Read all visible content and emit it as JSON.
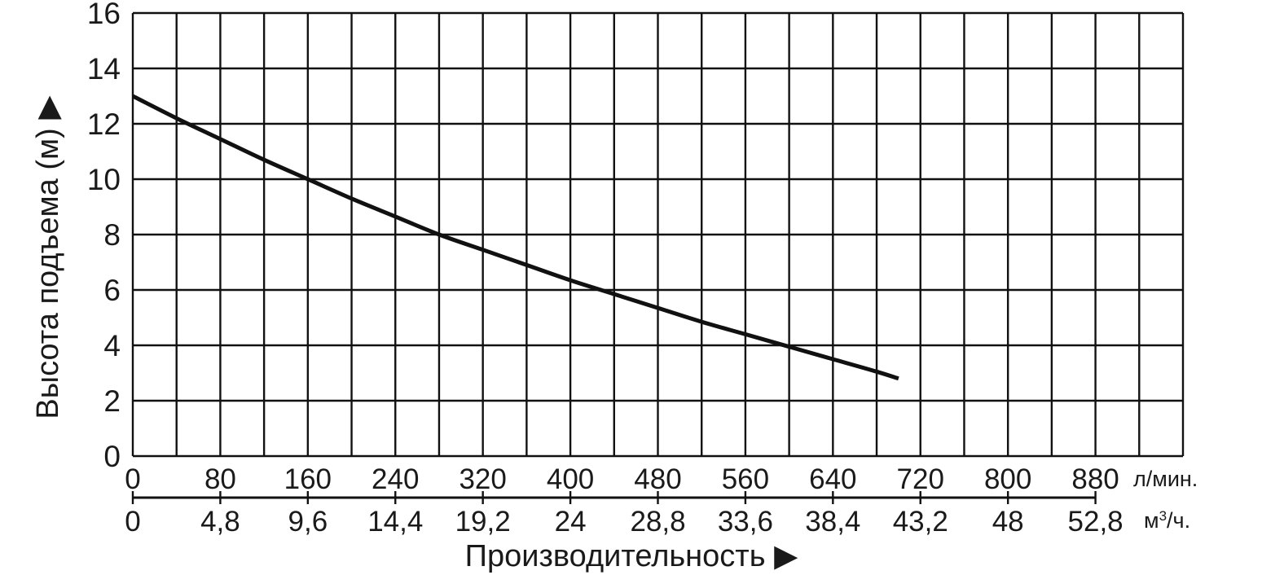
{
  "chart_data": {
    "type": "line",
    "ylabel": "Высота подъема (м)",
    "ylabel_arrow": "▶",
    "xlabel": "Производительность",
    "xlabel_arrow": "▶",
    "ylim": [
      0,
      16
    ],
    "yticks": [
      "0",
      "2",
      "4",
      "6",
      "8",
      "10",
      "12",
      "14",
      "16"
    ],
    "xlim": [
      0,
      960
    ],
    "x_minor_step": 40,
    "grid": true,
    "x_axis_primary": {
      "unit": "л/мин.",
      "ticks": [
        "0",
        "80",
        "160",
        "240",
        "320",
        "400",
        "480",
        "560",
        "640",
        "720",
        "800",
        "880"
      ],
      "tick_values": [
        0,
        80,
        160,
        240,
        320,
        400,
        480,
        560,
        640,
        720,
        800,
        880
      ]
    },
    "x_axis_secondary": {
      "unit_base": "м",
      "unit_sup": "3",
      "unit_tail": "/ч.",
      "ticks": [
        "0",
        "4,8",
        "9,6",
        "14,4",
        "19,2",
        "24",
        "28,8",
        "33,6",
        "38,4",
        "43,2",
        "48",
        "52,8"
      ]
    },
    "series": [
      {
        "x": [
          0,
          40,
          80,
          120,
          160,
          200,
          240,
          280,
          320,
          360,
          400,
          440,
          480,
          520,
          560,
          600,
          640,
          680,
          700
        ],
        "y": [
          13.0,
          12.2,
          11.45,
          10.7,
          10.0,
          9.3,
          8.65,
          8.0,
          7.45,
          6.9,
          6.35,
          5.85,
          5.35,
          4.85,
          4.4,
          3.95,
          3.5,
          3.05,
          2.8
        ]
      }
    ],
    "colors": {
      "line": "#111111",
      "grid": "#111111",
      "text": "#1a1a1a"
    }
  }
}
